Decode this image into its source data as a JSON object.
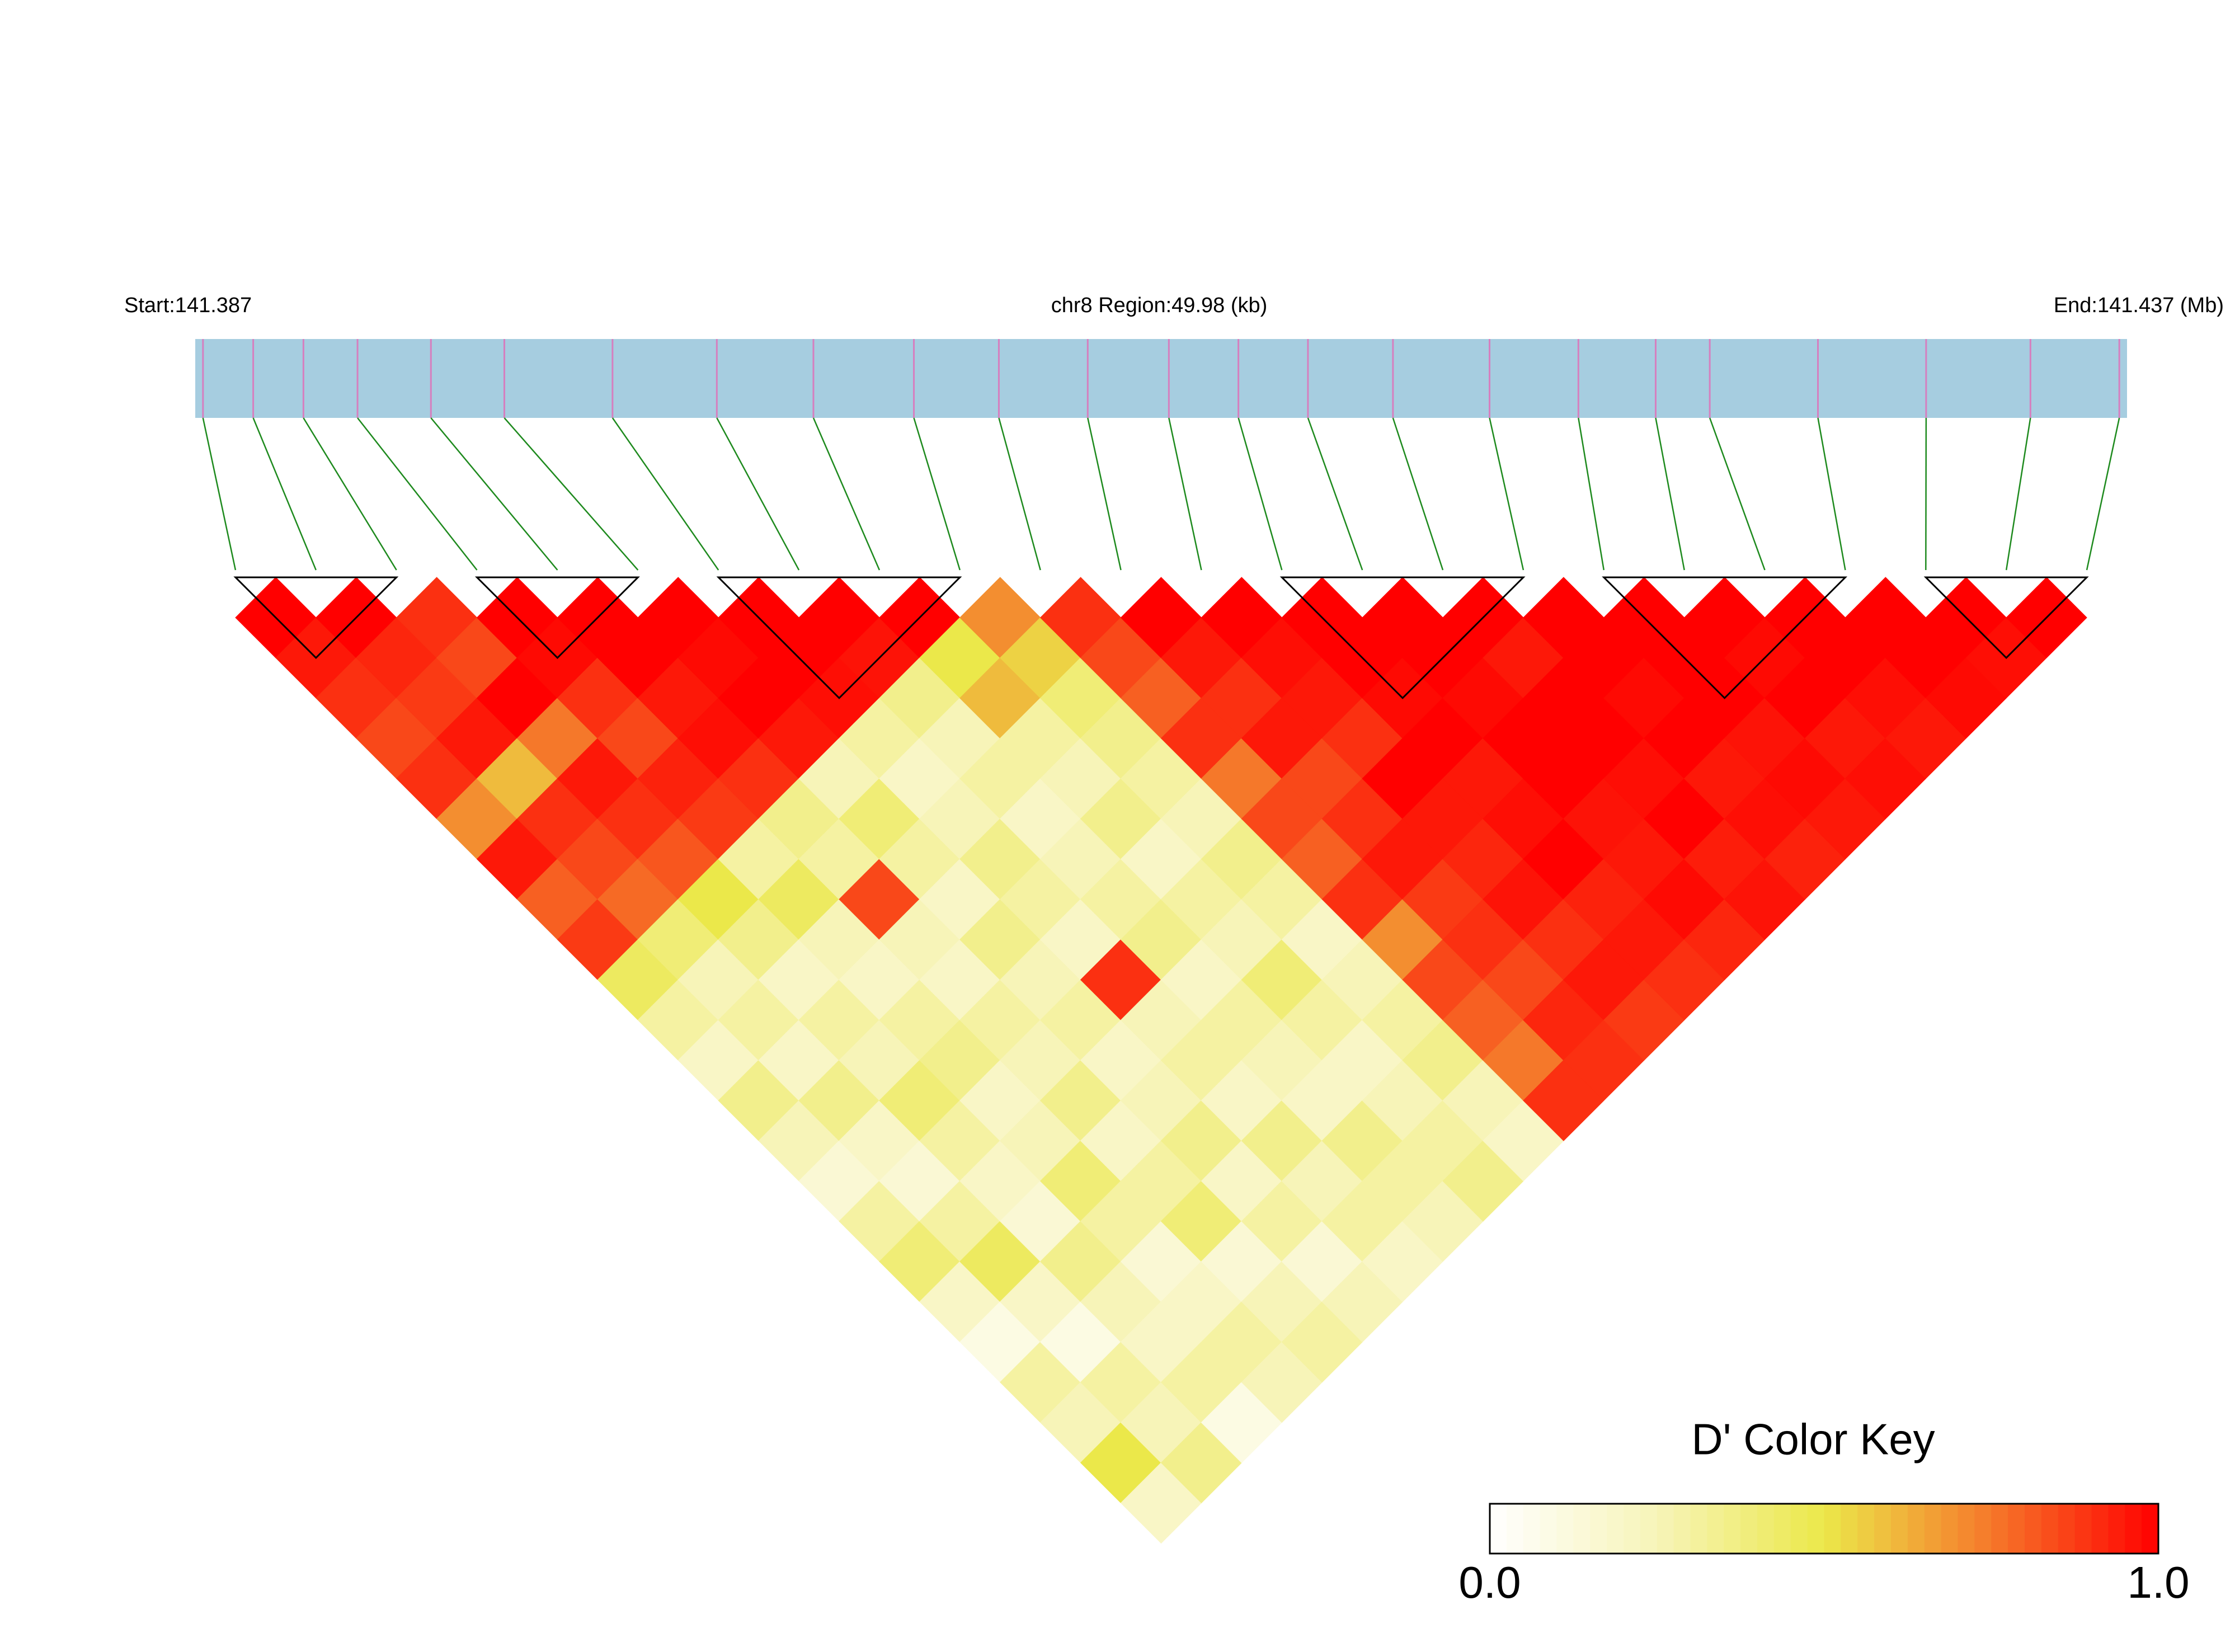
{
  "chart_data": {
    "type": "ld_heatmap",
    "start_label": "Start:141.387",
    "region_label": "chr8 Region:49.98 (kb)",
    "end_label": "End:141.437 (Mb)",
    "xlim": [
      141.387,
      141.437
    ],
    "snp_positions": [
      141.3872,
      141.3885,
      141.3898,
      141.3912,
      141.3931,
      141.395,
      141.3978,
      141.4005,
      141.403,
      141.4056,
      141.4078,
      141.4101,
      141.4122,
      141.414,
      141.4158,
      141.418,
      141.4205,
      141.4228,
      141.4248,
      141.4262,
      141.429,
      141.4318,
      141.4345,
      141.4368
    ],
    "bar_color": "#a6cde0",
    "snp_line_color": "#d67fbf",
    "connector_color": "#1e8a1e",
    "dprime": [
      [
        1,
        0.95,
        0.9,
        0.85,
        0.9,
        0.7,
        0.95,
        0.8,
        0.88,
        0.45,
        0.3,
        0.2,
        0.35,
        0.25,
        0.15,
        0.3,
        0.4,
        0.2,
        0.1,
        0.3,
        0.25,
        0.5,
        0.2
      ],
      [
        1,
        0.92,
        0.88,
        0.95,
        0.6,
        0.9,
        0.85,
        0.78,
        0.4,
        0.25,
        0.3,
        0.2,
        0.35,
        0.2,
        0.15,
        0.3,
        0.45,
        0.2,
        0.1,
        0.3,
        0.25,
        0.35
      ],
      [
        0.9,
        0.85,
        1,
        0.75,
        0.95,
        0.9,
        0.82,
        0.5,
        0.35,
        0.2,
        0.3,
        0.25,
        0.4,
        0.3,
        0.2,
        0.15,
        0.35,
        0.25,
        0.2,
        0.3,
        0.1
      ],
      [
        1,
        0.98,
        0.9,
        0.85,
        0.93,
        0.88,
        0.3,
        0.45,
        0.25,
        0.2,
        0.3,
        0.35,
        0.2,
        0.25,
        0.4,
        0.3,
        0.15,
        0.2,
        0.3,
        0.25
      ],
      [
        1,
        1,
        0.95,
        0.97,
        0.9,
        0.35,
        0.3,
        0.85,
        0.25,
        0.2,
        0.3,
        0.25,
        0.35,
        0.2,
        0.3,
        0.4,
        0.15,
        0.25,
        0.3
      ],
      [
        1,
        0.98,
        1,
        0.95,
        0.25,
        0.4,
        0.3,
        0.2,
        0.35,
        0.25,
        0.3,
        0.2,
        0.25,
        0.35,
        0.2,
        0.3,
        0.15,
        0.25
      ],
      [
        1,
        1,
        0.97,
        0.3,
        0.2,
        0.25,
        0.35,
        0.3,
        0.2,
        0.9,
        0.25,
        0.3,
        0.2,
        0.35,
        0.25,
        0.3,
        0.2
      ],
      [
        1,
        0.96,
        0.35,
        0.25,
        0.3,
        0.2,
        0.25,
        0.3,
        0.35,
        0.2,
        0.3,
        0.25,
        0.2,
        0.35,
        0.3,
        0.25
      ],
      [
        1,
        0.5,
        0.6,
        0.3,
        0.25,
        0.35,
        0.2,
        0.3,
        0.25,
        0.4,
        0.3,
        0.2,
        0.25,
        0.3,
        0.35
      ],
      [
        0.7,
        0.55,
        0.4,
        0.35,
        0.3,
        0.25,
        0.35,
        0.3,
        0.2,
        0.25,
        0.3,
        0.35,
        0.25,
        0.2
      ],
      [
        0.9,
        0.85,
        0.8,
        0.9,
        0.75,
        0.85,
        0.8,
        0.9,
        0.7,
        0.85,
        0.8,
        0.75,
        0.9
      ],
      [
        1,
        0.95,
        0.9,
        0.95,
        0.85,
        0.9,
        0.95,
        0.88,
        0.9,
        0.85,
        0.92,
        0.9
      ],
      [
        1,
        0.97,
        0.95,
        0.9,
        1,
        0.95,
        0.92,
        0.96,
        0.9,
        0.95,
        0.88
      ],
      [
        1,
        1,
        0.98,
        1,
        0.95,
        0.97,
        1,
        0.93,
        0.95,
        0.9
      ],
      [
        1,
        1,
        0.98,
        1,
        1,
        0.96,
        0.95,
        0.98,
        0.92
      ],
      [
        1,
        0.95,
        1,
        1,
        0.97,
        1,
        0.94,
        0.96
      ],
      [
        1,
        1,
        0.98,
        1,
        0.95,
        0.97,
        0.93
      ],
      [
        1,
        1,
        1,
        0.96,
        0.98,
        0.95
      ],
      [
        1,
        0.98,
        1,
        0.95,
        0.97
      ],
      [
        1,
        1,
        0.97,
        0.95
      ],
      [
        1,
        1,
        0.98
      ],
      [
        1,
        0.97
      ],
      [
        1
      ]
    ],
    "blocks": [
      [
        0,
        2
      ],
      [
        3,
        5
      ],
      [
        6,
        9
      ],
      [
        13,
        16
      ],
      [
        17,
        20
      ],
      [
        21,
        23
      ]
    ],
    "colormap": [
      "#ffffff",
      "#f7f4b8",
      "#ebe84a",
      "#f5782a",
      "#ff0000"
    ],
    "key_title": "D' Color Key",
    "key_ticks": [
      {
        "value": 0,
        "label": "0.0"
      },
      {
        "value": 1,
        "label": "1.0"
      }
    ]
  }
}
